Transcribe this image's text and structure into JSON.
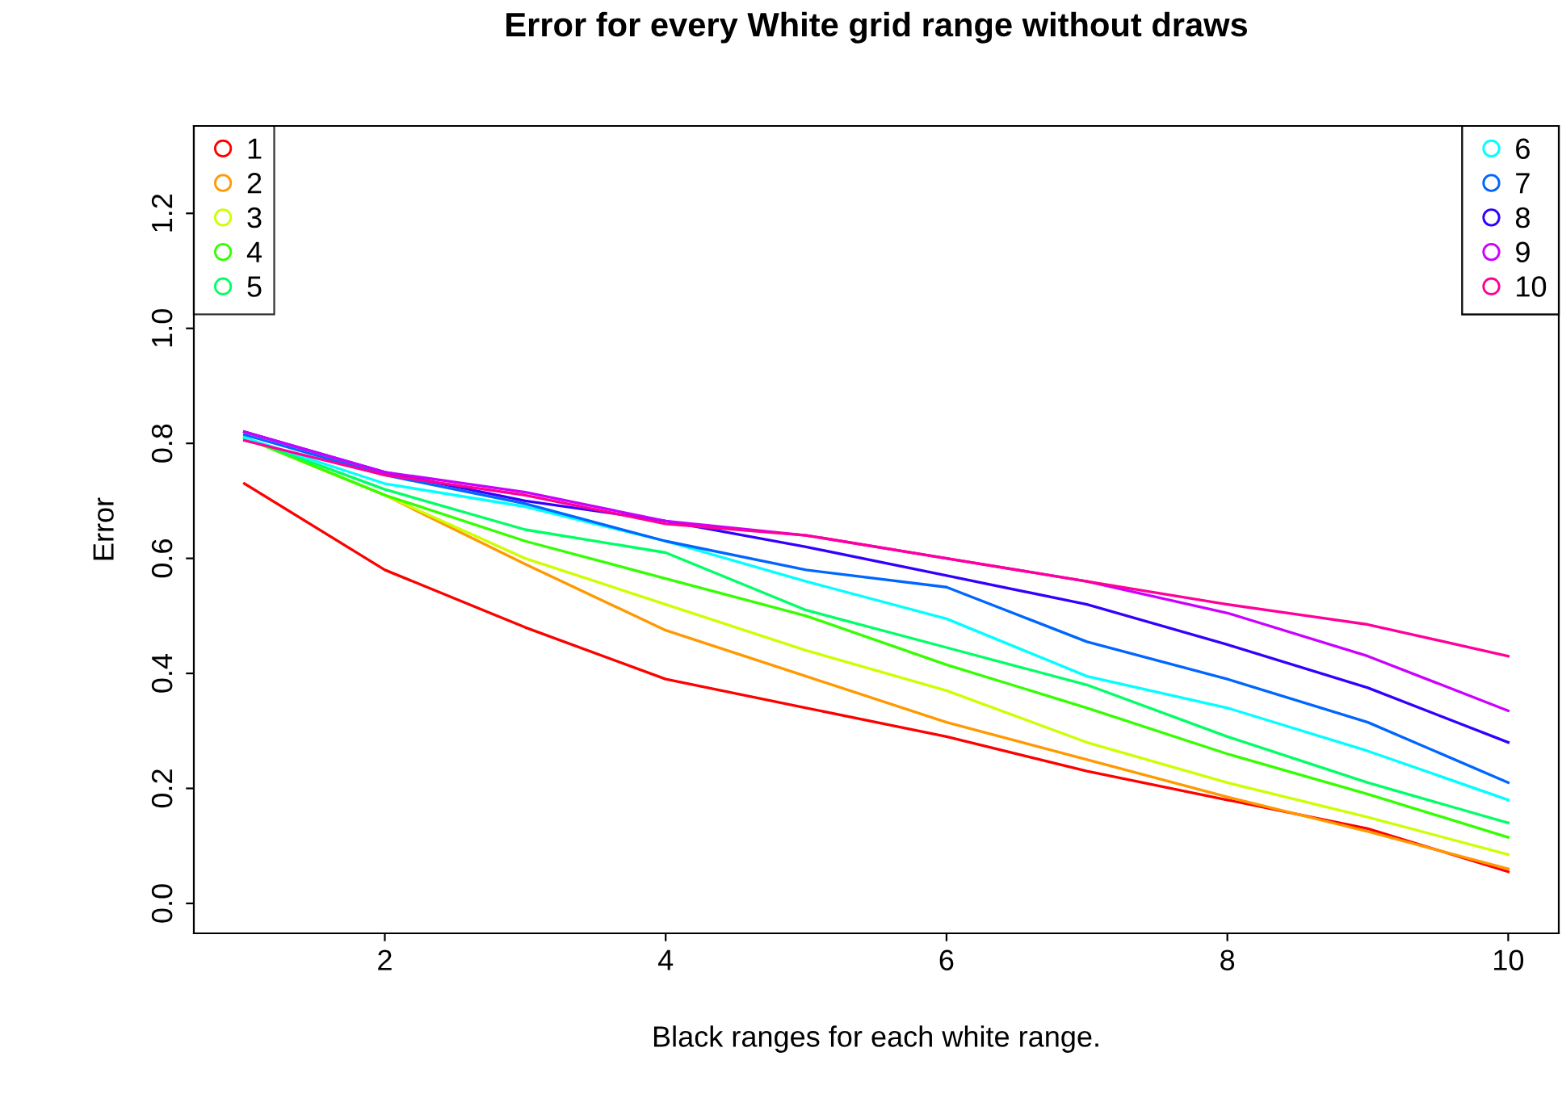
{
  "chart_data": {
    "type": "line",
    "title": "Error for every White grid range without draws",
    "xlabel": "Black ranges for each white range.",
    "ylabel": "Error",
    "x": [
      1,
      2,
      3,
      4,
      5,
      6,
      7,
      8,
      9,
      10
    ],
    "series": [
      {
        "name": "1",
        "color": "#ff0000",
        "values": [
          0.73,
          0.58,
          0.48,
          0.39,
          0.34,
          0.29,
          0.23,
          0.18,
          0.13,
          0.055
        ]
      },
      {
        "name": "2",
        "color": "#ff9900",
        "values": [
          0.81,
          0.71,
          0.59,
          0.475,
          0.395,
          0.315,
          0.25,
          0.185,
          0.125,
          0.06
        ]
      },
      {
        "name": "3",
        "color": "#ccff00",
        "values": [
          0.81,
          0.71,
          0.6,
          0.52,
          0.44,
          0.37,
          0.28,
          0.21,
          0.15,
          0.085
        ]
      },
      {
        "name": "4",
        "color": "#33ff00",
        "values": [
          0.81,
          0.71,
          0.63,
          0.565,
          0.5,
          0.415,
          0.34,
          0.26,
          0.19,
          0.115
        ]
      },
      {
        "name": "5",
        "color": "#00ff66",
        "values": [
          0.81,
          0.72,
          0.65,
          0.61,
          0.51,
          0.445,
          0.38,
          0.29,
          0.21,
          0.14
        ]
      },
      {
        "name": "6",
        "color": "#00ffff",
        "values": [
          0.81,
          0.73,
          0.69,
          0.63,
          0.56,
          0.495,
          0.395,
          0.34,
          0.265,
          0.18
        ]
      },
      {
        "name": "7",
        "color": "#0066ff",
        "values": [
          0.815,
          0.745,
          0.695,
          0.63,
          0.58,
          0.55,
          0.455,
          0.39,
          0.315,
          0.21
        ]
      },
      {
        "name": "8",
        "color": "#3300ff",
        "values": [
          0.82,
          0.75,
          0.7,
          0.665,
          0.62,
          0.57,
          0.52,
          0.45,
          0.375,
          0.28
        ]
      },
      {
        "name": "9",
        "color": "#cc00ff",
        "values": [
          0.82,
          0.75,
          0.715,
          0.665,
          0.64,
          0.6,
          0.56,
          0.505,
          0.43,
          0.335
        ]
      },
      {
        "name": "10",
        "color": "#ff0099",
        "values": [
          0.805,
          0.745,
          0.71,
          0.66,
          0.64,
          0.6,
          0.56,
          0.52,
          0.485,
          0.43
        ]
      }
    ],
    "xlim": [
      0.64,
      10.36
    ],
    "ylim": [
      -0.052,
      1.352
    ],
    "xticks": [
      2,
      4,
      6,
      8,
      10
    ],
    "yticks": [
      {
        "value": 0,
        "label": "0.0"
      },
      {
        "value": 0.2,
        "label": "0.2"
      },
      {
        "value": 0.4,
        "label": "0.4"
      },
      {
        "value": 0.6,
        "label": "0.6"
      },
      {
        "value": 0.8,
        "label": "0.8"
      },
      {
        "value": 1.0,
        "label": "1.0"
      },
      {
        "value": 1.2,
        "label": "1.2"
      }
    ],
    "grid": false,
    "legend": "top",
    "line_style": "solid"
  }
}
